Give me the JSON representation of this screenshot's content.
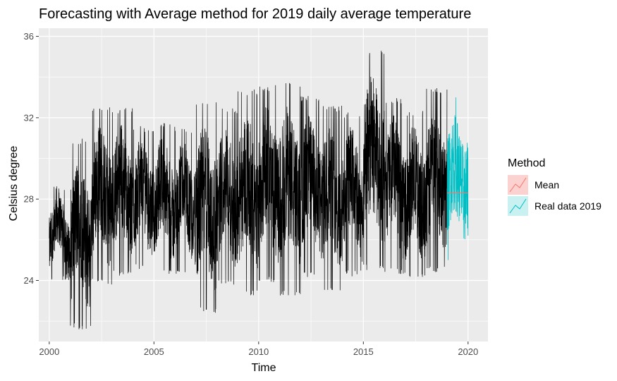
{
  "chart_data": {
    "type": "line",
    "title": "Forecasting with Average method for 2019 daily average temperature",
    "xlabel": "Time",
    "ylabel": "Celsius degree",
    "xlim": [
      1999.5,
      2020.95
    ],
    "ylim": [
      21.0,
      36.4
    ],
    "x_ticks": [
      2000,
      2005,
      2010,
      2015,
      2020
    ],
    "y_ticks": [
      24,
      28,
      32,
      36
    ],
    "grid": true,
    "legend": {
      "title": "Method",
      "placement": "right",
      "entries": [
        {
          "label": "Mean",
          "color": "#F8766D"
        },
        {
          "label": "Real data 2019",
          "color": "#00BFC4"
        }
      ]
    },
    "series": [
      {
        "name": "",
        "color": "#000000",
        "x_range": [
          2000,
          2019
        ],
        "annual_envelope": [
          {
            "year": 2000,
            "min": 24.0,
            "max": 28.7
          },
          {
            "year": 2001,
            "min": 21.6,
            "max": 31.0
          },
          {
            "year": 2002,
            "min": 23.8,
            "max": 32.6
          },
          {
            "year": 2003,
            "min": 24.2,
            "max": 32.5
          },
          {
            "year": 2004,
            "min": 24.5,
            "max": 31.6
          },
          {
            "year": 2005,
            "min": 24.3,
            "max": 31.8
          },
          {
            "year": 2006,
            "min": 24.2,
            "max": 31.5
          },
          {
            "year": 2007,
            "min": 22.4,
            "max": 32.8
          },
          {
            "year": 2008,
            "min": 23.8,
            "max": 32.5
          },
          {
            "year": 2009,
            "min": 23.2,
            "max": 33.4
          },
          {
            "year": 2010,
            "min": 23.9,
            "max": 33.6
          },
          {
            "year": 2011,
            "min": 23.2,
            "max": 33.8
          },
          {
            "year": 2012,
            "min": 24.1,
            "max": 33.1
          },
          {
            "year": 2013,
            "min": 23.5,
            "max": 32.6
          },
          {
            "year": 2014,
            "min": 24.2,
            "max": 32.3
          },
          {
            "year": 2015,
            "min": 24.5,
            "max": 35.3
          },
          {
            "year": 2016,
            "min": 24.3,
            "max": 33.0
          },
          {
            "year": 2017,
            "min": 24.0,
            "max": 32.4
          },
          {
            "year": 2018,
            "min": 24.4,
            "max": 33.5
          }
        ]
      },
      {
        "name": "Mean",
        "color": "#F8766D",
        "x": [
          2019,
          2020
        ],
        "y": [
          28.3,
          28.3
        ]
      },
      {
        "name": "Real data 2019",
        "color": "#00BFC4",
        "x_range": [
          2019,
          2020
        ],
        "min": 25.0,
        "max": 33.0
      }
    ]
  }
}
